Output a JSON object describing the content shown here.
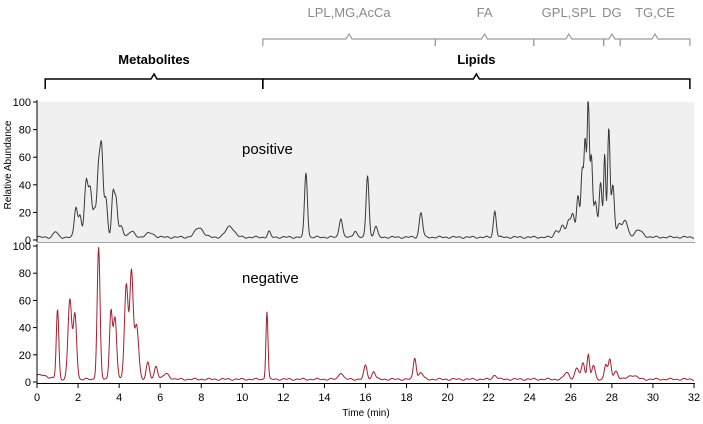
{
  "chart_data": {
    "type": "line",
    "xlabel": "Time (min)",
    "ylabel": "Relative Abundance",
    "xlim": [
      0,
      32
    ],
    "ylim": [
      0,
      100
    ],
    "x_ticks": [
      0,
      2,
      4,
      6,
      8,
      10,
      12,
      14,
      16,
      18,
      20,
      22,
      24,
      26,
      28,
      30,
      32
    ],
    "y_ticks": [
      0,
      20,
      40,
      60,
      80,
      100
    ],
    "groups": [
      {
        "label": "Metabolites",
        "range": [
          0.4,
          11.0
        ]
      },
      {
        "label": "Lipids",
        "range": [
          11.0,
          31.8
        ]
      }
    ],
    "lipid_classes": [
      {
        "label": "LPL,MG,AcCa",
        "range": [
          11.0,
          19.4
        ]
      },
      {
        "label": "FA",
        "range": [
          19.4,
          24.2
        ]
      },
      {
        "label": "GPL,SPL",
        "range": [
          24.2,
          27.6
        ]
      },
      {
        "label": "DG",
        "range": [
          27.6,
          28.4
        ]
      },
      {
        "label": "TG,CE",
        "range": [
          28.4,
          31.8
        ]
      }
    ],
    "panels": [
      {
        "name": "positive",
        "color": "#3a3a3a",
        "background": "#f0f0f0",
        "baseline": 2,
        "peaks": [
          [
            0.9,
            4,
            0.1
          ],
          [
            1.9,
            22,
            0.08
          ],
          [
            2.1,
            15,
            0.07
          ],
          [
            2.4,
            40,
            0.09
          ],
          [
            2.6,
            33,
            0.08
          ],
          [
            2.8,
            18,
            0.07
          ],
          [
            3.0,
            50,
            0.08
          ],
          [
            3.15,
            58,
            0.07
          ],
          [
            3.35,
            28,
            0.08
          ],
          [
            3.7,
            31,
            0.07
          ],
          [
            3.85,
            26,
            0.07
          ],
          [
            4.1,
            8,
            0.1
          ],
          [
            4.6,
            4,
            0.15
          ],
          [
            5.5,
            3,
            0.2
          ],
          [
            7.9,
            7,
            0.2
          ],
          [
            9.4,
            8,
            0.2
          ],
          [
            11.3,
            4,
            0.07
          ],
          [
            13.1,
            47,
            0.07
          ],
          [
            14.8,
            14,
            0.08
          ],
          [
            15.5,
            5,
            0.08
          ],
          [
            16.1,
            45,
            0.07
          ],
          [
            16.5,
            8,
            0.08
          ],
          [
            18.7,
            18,
            0.08
          ],
          [
            22.3,
            19,
            0.07
          ],
          [
            25.3,
            5,
            0.1
          ],
          [
            25.6,
            8,
            0.1
          ],
          [
            25.9,
            12,
            0.1
          ],
          [
            26.1,
            16,
            0.08
          ],
          [
            26.35,
            30,
            0.07
          ],
          [
            26.55,
            46,
            0.06
          ],
          [
            26.7,
            70,
            0.06
          ],
          [
            26.85,
            98,
            0.05
          ],
          [
            27.0,
            58,
            0.06
          ],
          [
            27.2,
            25,
            0.08
          ],
          [
            27.45,
            40,
            0.07
          ],
          [
            27.65,
            60,
            0.05
          ],
          [
            27.85,
            78,
            0.06
          ],
          [
            28.05,
            38,
            0.07
          ],
          [
            28.35,
            10,
            0.1
          ],
          [
            28.65,
            12,
            0.12
          ],
          [
            29.3,
            5,
            0.2
          ]
        ]
      },
      {
        "name": "negative",
        "color": "#a02030",
        "background": "#ffffff",
        "baseline": 2,
        "peaks": [
          [
            0.15,
            3,
            0.4
          ],
          [
            1.0,
            51,
            0.06
          ],
          [
            1.6,
            59,
            0.09
          ],
          [
            1.85,
            48,
            0.08
          ],
          [
            3.0,
            97,
            0.07
          ],
          [
            3.6,
            50,
            0.07
          ],
          [
            3.8,
            45,
            0.08
          ],
          [
            4.35,
            70,
            0.09
          ],
          [
            4.6,
            78,
            0.08
          ],
          [
            4.85,
            40,
            0.1
          ],
          [
            5.4,
            12,
            0.08
          ],
          [
            5.8,
            10,
            0.08
          ],
          [
            6.3,
            4,
            0.15
          ],
          [
            11.2,
            50,
            0.05
          ],
          [
            14.8,
            5,
            0.1
          ],
          [
            16.0,
            10,
            0.08
          ],
          [
            16.4,
            6,
            0.08
          ],
          [
            18.4,
            16,
            0.07
          ],
          [
            18.7,
            5,
            0.1
          ],
          [
            22.3,
            3,
            0.1
          ],
          [
            25.8,
            5,
            0.12
          ],
          [
            26.3,
            8,
            0.1
          ],
          [
            26.6,
            12,
            0.08
          ],
          [
            26.85,
            18,
            0.06
          ],
          [
            27.1,
            10,
            0.08
          ],
          [
            27.7,
            11,
            0.07
          ],
          [
            27.9,
            14,
            0.07
          ],
          [
            28.2,
            6,
            0.1
          ],
          [
            29.0,
            3,
            0.2
          ]
        ]
      }
    ]
  }
}
